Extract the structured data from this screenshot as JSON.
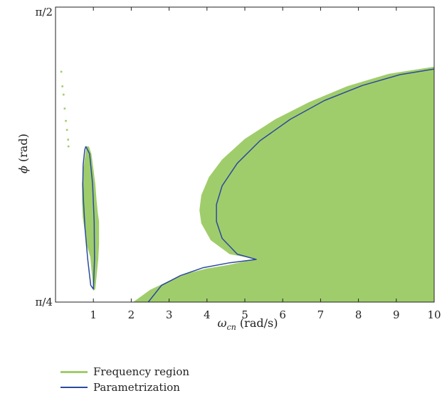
{
  "chart_data": {
    "type": "area",
    "xlabel_main": "ω",
    "xlabel_sub": "cn",
    "xlabel_unit": " (rad/s)",
    "ylabel_main": "ϕ",
    "ylabel_unit": " (rad)",
    "xlim": [
      0,
      10
    ],
    "ylim": [
      0.7854,
      1.5708
    ],
    "x_ticks": [
      1,
      2,
      3,
      4,
      5,
      6,
      7,
      8,
      9,
      10
    ],
    "x_tick_labels": [
      "1",
      "2",
      "3",
      "4",
      "5",
      "6",
      "7",
      "8",
      "9",
      "10"
    ],
    "y_ticks": [
      0.7854,
      1.5708
    ],
    "y_tick_labels": [
      "π/4",
      "π/2"
    ],
    "grid": false,
    "legend_position": "bottom-left",
    "colors": {
      "region": "#a0cd6b",
      "curve": "#2c4a9e"
    },
    "series": [
      {
        "name": "Frequency region",
        "kind": "filled-region",
        "left_lobe": {
          "x": [
            0.82,
            0.8,
            0.75,
            0.7,
            0.7,
            0.72,
            0.78,
            0.83,
            0.92,
            1.0,
            1.05,
            1.13,
            1.15,
            1.15,
            1.12,
            1.08,
            1.05,
            1.0,
            0.95,
            0.88
          ],
          "y": [
            1.2,
            1.19,
            1.15,
            1.1,
            1.05,
            1.01,
            0.97,
            0.935,
            0.905,
            0.815,
            0.82,
            0.9,
            0.94,
            1.0,
            1.02,
            1.06,
            1.1,
            1.14,
            1.18,
            1.2
          ]
        },
        "right_branch": {
          "x": [
            10.0,
            10.0,
            8.7,
            8.0,
            7.0,
            6.0,
            5.2,
            4.6,
            4.2,
            3.95,
            3.95,
            4.0,
            4.5,
            5.0,
            5.4,
            4.6,
            4.0,
            3.4,
            3.0,
            2.6,
            2.3,
            2.05
          ],
          "y": [
            1.412,
            0.7854,
            0.7854,
            0.7854,
            0.7854,
            0.7854,
            0.7854,
            0.7854,
            0.7854,
            0.7854,
            0.7854,
            0.7854,
            0.7854,
            0.7854,
            0.7854,
            0.895,
            0.891,
            0.878,
            0.862,
            0.842,
            0.818,
            0.7854
          ],
          "outer_x": [
            2.05,
            2.5,
            3.0,
            3.5,
            4.0,
            4.6,
            5.3,
            4.6,
            4.1,
            3.85,
            3.8,
            3.85,
            4.05,
            4.4,
            5.0,
            5.8,
            6.7,
            7.7,
            8.8,
            10.0
          ],
          "outer_y": [
            0.7854,
            0.818,
            0.842,
            0.862,
            0.875,
            0.885,
            0.9,
            0.913,
            0.95,
            0.995,
            1.03,
            1.07,
            1.118,
            1.165,
            1.22,
            1.272,
            1.318,
            1.36,
            1.393,
            1.412
          ]
        },
        "scatter_dots": {
          "x": [
            0.15,
            0.18,
            0.21,
            0.24,
            0.27,
            0.3,
            0.33,
            0.34
          ],
          "y": [
            1.399,
            1.36,
            1.338,
            1.301,
            1.268,
            1.244,
            1.218,
            1.2
          ]
        }
      },
      {
        "name": "Parametrization",
        "kind": "curve",
        "loop": {
          "x": [
            0.8,
            0.9,
            0.98,
            1.02,
            1.03,
            1.0,
            0.93,
            0.85,
            0.78,
            0.74,
            0.72,
            0.73,
            0.77,
            0.8
          ],
          "y": [
            1.2,
            1.18,
            1.1,
            1.0,
            0.9,
            0.82,
            0.83,
            0.9,
            0.98,
            1.05,
            1.1,
            1.15,
            1.19,
            1.2
          ]
        },
        "branch": {
          "x": [
            2.45,
            2.8,
            3.3,
            3.9,
            4.6,
            5.3,
            4.8,
            4.4,
            4.25,
            4.25,
            4.4,
            4.8,
            5.4,
            6.2,
            7.1,
            8.1,
            9.1,
            10.0
          ],
          "y": [
            0.7854,
            0.83,
            0.856,
            0.877,
            0.89,
            0.899,
            0.913,
            0.955,
            1.0,
            1.045,
            1.095,
            1.155,
            1.215,
            1.272,
            1.322,
            1.362,
            1.391,
            1.406
          ]
        }
      }
    ]
  }
}
